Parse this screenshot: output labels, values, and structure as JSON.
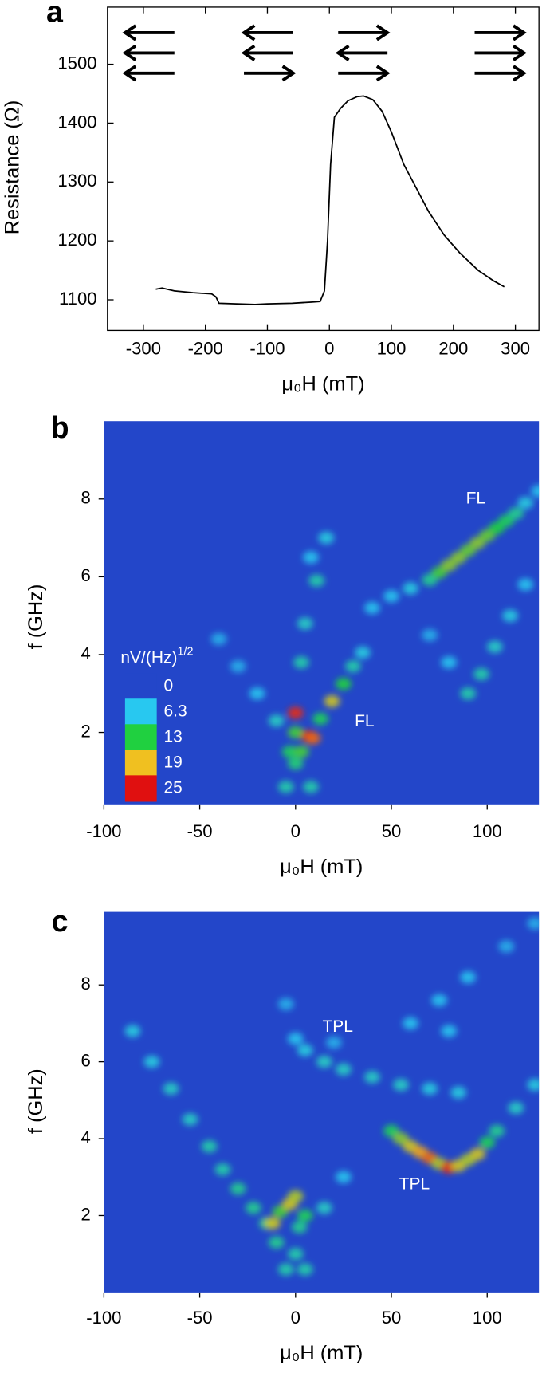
{
  "chart_data": [
    {
      "type": "line",
      "panel_label": "a",
      "x_label": "μ₀H (mT)",
      "y_label": "Resistance (Ω)",
      "xlim": [
        -358,
        338
      ],
      "ylim": [
        1048,
        1597
      ],
      "xticks": [
        -300,
        -200,
        -100,
        0,
        100,
        200,
        300
      ],
      "yticks": [
        1100,
        1200,
        1300,
        1400,
        1500
      ],
      "color": "#000000",
      "x": [
        -280,
        -270,
        -250,
        -220,
        -190,
        -183,
        -178,
        -150,
        -120,
        -100,
        -60,
        -30,
        -15,
        -8,
        -3,
        2,
        8,
        18,
        30,
        45,
        55,
        70,
        85,
        100,
        120,
        140,
        160,
        185,
        210,
        240,
        265,
        282
      ],
      "values": [
        1118,
        1120,
        1115,
        1112,
        1110,
        1105,
        1094,
        1093,
        1092,
        1093,
        1094,
        1096,
        1097,
        1115,
        1200,
        1330,
        1410,
        1425,
        1438,
        1445,
        1446,
        1440,
        1420,
        1385,
        1330,
        1290,
        1250,
        1210,
        1180,
        1150,
        1132,
        1122
      ]
    },
    {
      "type": "heatmap",
      "panel_label": "b",
      "x_label": "μ₀H (mT)",
      "y_label": "f (GHz)",
      "xlim": [
        -100,
        127
      ],
      "ylim": [
        0.15,
        10
      ],
      "xticks": [
        -100,
        -50,
        0,
        50,
        100
      ],
      "yticks": [
        2,
        4,
        6,
        8
      ],
      "colorbar_label": {
        "text": "nV/(Hz)",
        "superscript": "1/2"
      },
      "colorbar_ticks": [
        0,
        6.3,
        13,
        19,
        25
      ],
      "colorbar_colors": [
        "#2346c9",
        "#28c8f0",
        "#20d040",
        "#f0c020",
        "#e01010"
      ],
      "annotations": [
        "FL",
        "FL"
      ],
      "points": {
        "x": [
          0,
          0,
          7,
          9,
          -3,
          3,
          0,
          -5,
          8,
          13,
          19,
          25,
          30,
          35,
          3,
          5,
          11,
          16,
          8,
          70,
          75,
          80,
          85,
          90,
          95,
          100,
          105,
          110,
          115,
          120,
          127,
          40,
          50,
          60,
          90,
          97,
          104,
          112,
          120,
          80,
          70,
          -10,
          -20,
          -30,
          -40
        ],
        "y": [
          2.5,
          2.0,
          1.9,
          1.85,
          1.5,
          1.5,
          1.2,
          0.6,
          0.6,
          2.35,
          2.8,
          3.25,
          3.7,
          4.05,
          3.8,
          4.8,
          5.9,
          7.0,
          6.5,
          5.92,
          6.11,
          6.3,
          6.49,
          6.68,
          6.87,
          7.06,
          7.25,
          7.44,
          7.63,
          7.9,
          8.2,
          5.2,
          5.5,
          5.7,
          3.0,
          3.5,
          4.2,
          5.0,
          5.8,
          3.8,
          4.5,
          2.3,
          3.0,
          3.7,
          4.4
        ],
        "values": [
          24,
          14,
          25,
          22,
          12,
          14,
          11,
          9,
          9,
          12,
          18,
          13,
          9,
          7,
          9,
          8,
          9,
          7,
          6,
          10,
          14,
          16,
          16,
          15,
          16,
          15,
          13,
          12,
          10,
          7,
          6,
          6,
          6,
          7,
          9,
          9,
          8,
          7,
          6,
          6,
          5,
          8,
          6,
          5,
          5
        ]
      }
    },
    {
      "type": "heatmap",
      "panel_label": "c",
      "x_label": "μ₀H (mT)",
      "y_label": "f (GHz)",
      "xlim": [
        -100,
        127
      ],
      "ylim": [
        0,
        9.9
      ],
      "xticks": [
        -100,
        -50,
        0,
        50,
        100
      ],
      "yticks": [
        2,
        4,
        6,
        8
      ],
      "colorbar_colors": [
        "#2346c9",
        "#28c8f0",
        "#20d040",
        "#f0c020",
        "#e01010"
      ],
      "colorbar_scale": [
        0,
        6.3,
        13,
        19,
        25
      ],
      "annotations": [
        "TPL",
        "TPL"
      ],
      "points": {
        "x": [
          -85,
          -75,
          -65,
          -55,
          -45,
          -38,
          -30,
          -22,
          -15,
          -12,
          -8,
          -3,
          0,
          5,
          2,
          0,
          -5,
          5,
          -10,
          50,
          55,
          60,
          65,
          70,
          75,
          80,
          85,
          90,
          95,
          100,
          105,
          115,
          125,
          5,
          15,
          25,
          40,
          55,
          70,
          85,
          0,
          -5,
          20,
          60,
          75,
          90,
          110,
          125,
          80,
          15,
          25
        ],
        "y": [
          6.8,
          6.0,
          5.3,
          4.5,
          3.8,
          3.2,
          2.7,
          2.2,
          1.8,
          1.8,
          2.1,
          2.3,
          2.5,
          2.0,
          1.7,
          1.0,
          0.6,
          0.6,
          1.3,
          4.2,
          4.0,
          3.8,
          3.65,
          3.5,
          3.35,
          3.25,
          3.3,
          3.45,
          3.6,
          3.9,
          4.2,
          4.8,
          5.4,
          6.3,
          6.0,
          5.8,
          5.6,
          5.4,
          5.3,
          5.2,
          6.6,
          7.5,
          6.5,
          7.0,
          7.6,
          8.2,
          9.0,
          9.6,
          6.8,
          2.2,
          3.0
        ],
        "values": [
          7,
          7,
          8,
          8,
          9,
          9,
          10,
          10,
          10,
          18,
          14,
          18,
          17,
          12,
          10,
          9,
          9,
          9,
          10,
          12,
          16,
          18,
          20,
          22,
          17,
          24,
          18,
          17,
          18,
          12,
          10,
          8,
          7,
          7,
          8,
          8,
          8,
          8,
          7,
          7,
          6,
          5,
          5,
          6,
          6,
          6,
          5,
          5,
          6,
          8,
          6
        ]
      }
    }
  ]
}
